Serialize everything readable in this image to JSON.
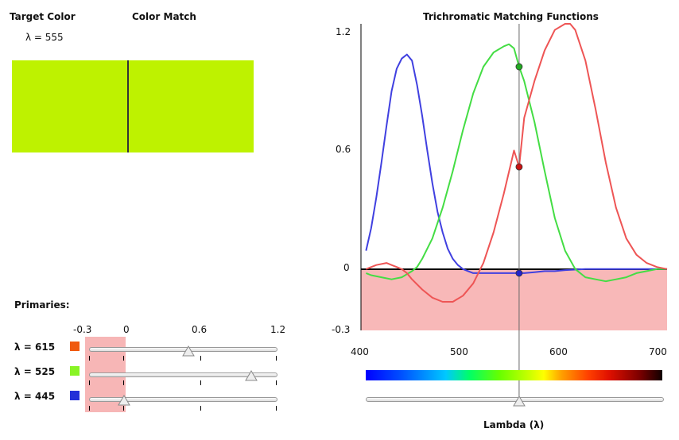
{
  "left_panel": {
    "target_label": "Target Color",
    "match_label": "Color Match",
    "lambda_readout": "λ = 555",
    "target_color": "#bef200",
    "match_color": "#bef200",
    "divider_color": "#333333"
  },
  "primaries": {
    "title": "Primaries:",
    "scale_ticks": [
      "-0.3",
      "0",
      "0.6",
      "1.2"
    ],
    "negative_region_color": "#f7b6b6",
    "rows": [
      {
        "label": "λ = 615",
        "color": "#f05a0f",
        "value": 0.5
      },
      {
        "label": "λ = 525",
        "color": "#88f425",
        "value": 1.0
      },
      {
        "label": "λ = 445",
        "color": "#2330d8",
        "value": -0.02
      }
    ]
  },
  "chart_title": "Trichromatic Matching Functions",
  "chart_data": {
    "type": "line",
    "title": "Trichromatic Matching Functions",
    "xlabel": "Lambda (λ)",
    "ylabel": "",
    "xlim": [
      400,
      700
    ],
    "ylim": [
      -0.3,
      1.2
    ],
    "x_ticks": [
      "400",
      "500",
      "600",
      "700"
    ],
    "y_ticks": [
      "1.2",
      "0.6",
      "0",
      "-0.3"
    ],
    "negative_region_color": "#f8b8b8",
    "cursor_lambda": 555,
    "series": [
      {
        "color": "#4040e0",
        "x": [
          405,
          410,
          415,
          420,
          425,
          430,
          435,
          440,
          445,
          450,
          455,
          460,
          465,
          470,
          475,
          480,
          485,
          490,
          495,
          500,
          505,
          510,
          520,
          530,
          540,
          550,
          555,
          560,
          570,
          580,
          590,
          600,
          620,
          640,
          660,
          680,
          700
        ],
        "values": [
          0.09,
          0.2,
          0.35,
          0.52,
          0.7,
          0.87,
          0.98,
          1.03,
          1.05,
          1.02,
          0.9,
          0.75,
          0.58,
          0.42,
          0.28,
          0.18,
          0.1,
          0.05,
          0.02,
          0.0,
          -0.01,
          -0.02,
          -0.02,
          -0.02,
          -0.02,
          -0.02,
          -0.02,
          -0.02,
          -0.015,
          -0.01,
          -0.01,
          -0.005,
          0,
          0,
          0,
          0,
          0
        ]
      },
      {
        "color": "#44dd44",
        "x": [
          405,
          410,
          420,
          430,
          440,
          450,
          455,
          460,
          470,
          480,
          490,
          500,
          510,
          520,
          530,
          540,
          545,
          550,
          555,
          560,
          570,
          580,
          590,
          600,
          610,
          620,
          630,
          640,
          650,
          660,
          670,
          680,
          690,
          700
        ],
        "values": [
          -0.02,
          -0.03,
          -0.04,
          -0.05,
          -0.04,
          -0.01,
          0.01,
          0.05,
          0.15,
          0.3,
          0.48,
          0.68,
          0.86,
          0.99,
          1.06,
          1.09,
          1.1,
          1.08,
          0.99,
          0.92,
          0.72,
          0.48,
          0.25,
          0.09,
          0.0,
          -0.04,
          -0.05,
          -0.06,
          -0.05,
          -0.04,
          -0.02,
          -0.01,
          0,
          0
        ]
      },
      {
        "color": "#ee5555",
        "x": [
          405,
          415,
          425,
          430,
          435,
          440,
          445,
          450,
          460,
          470,
          480,
          490,
          500,
          510,
          520,
          530,
          540,
          550,
          555,
          560,
          570,
          580,
          590,
          600,
          605,
          610,
          620,
          630,
          640,
          650,
          660,
          670,
          680,
          690,
          700
        ],
        "values": [
          0.0,
          0.02,
          0.03,
          0.02,
          0.01,
          0.0,
          -0.02,
          -0.05,
          -0.1,
          -0.14,
          -0.16,
          -0.16,
          -0.13,
          -0.07,
          0.03,
          0.18,
          0.37,
          0.58,
          0.5,
          0.74,
          0.92,
          1.07,
          1.17,
          1.2,
          1.2,
          1.17,
          1.02,
          0.78,
          0.52,
          0.3,
          0.15,
          0.07,
          0.03,
          0.01,
          0.0
        ]
      }
    ],
    "markers": [
      {
        "x": 555,
        "y": 0.99,
        "color": "#22aa22"
      },
      {
        "x": 555,
        "y": 0.5,
        "color": "#cc1111"
      },
      {
        "x": 555,
        "y": -0.02,
        "color": "#2222cc"
      }
    ]
  },
  "lambda_slider": {
    "label": "Lambda (λ)",
    "value": 555,
    "min": 400,
    "max": 700
  }
}
